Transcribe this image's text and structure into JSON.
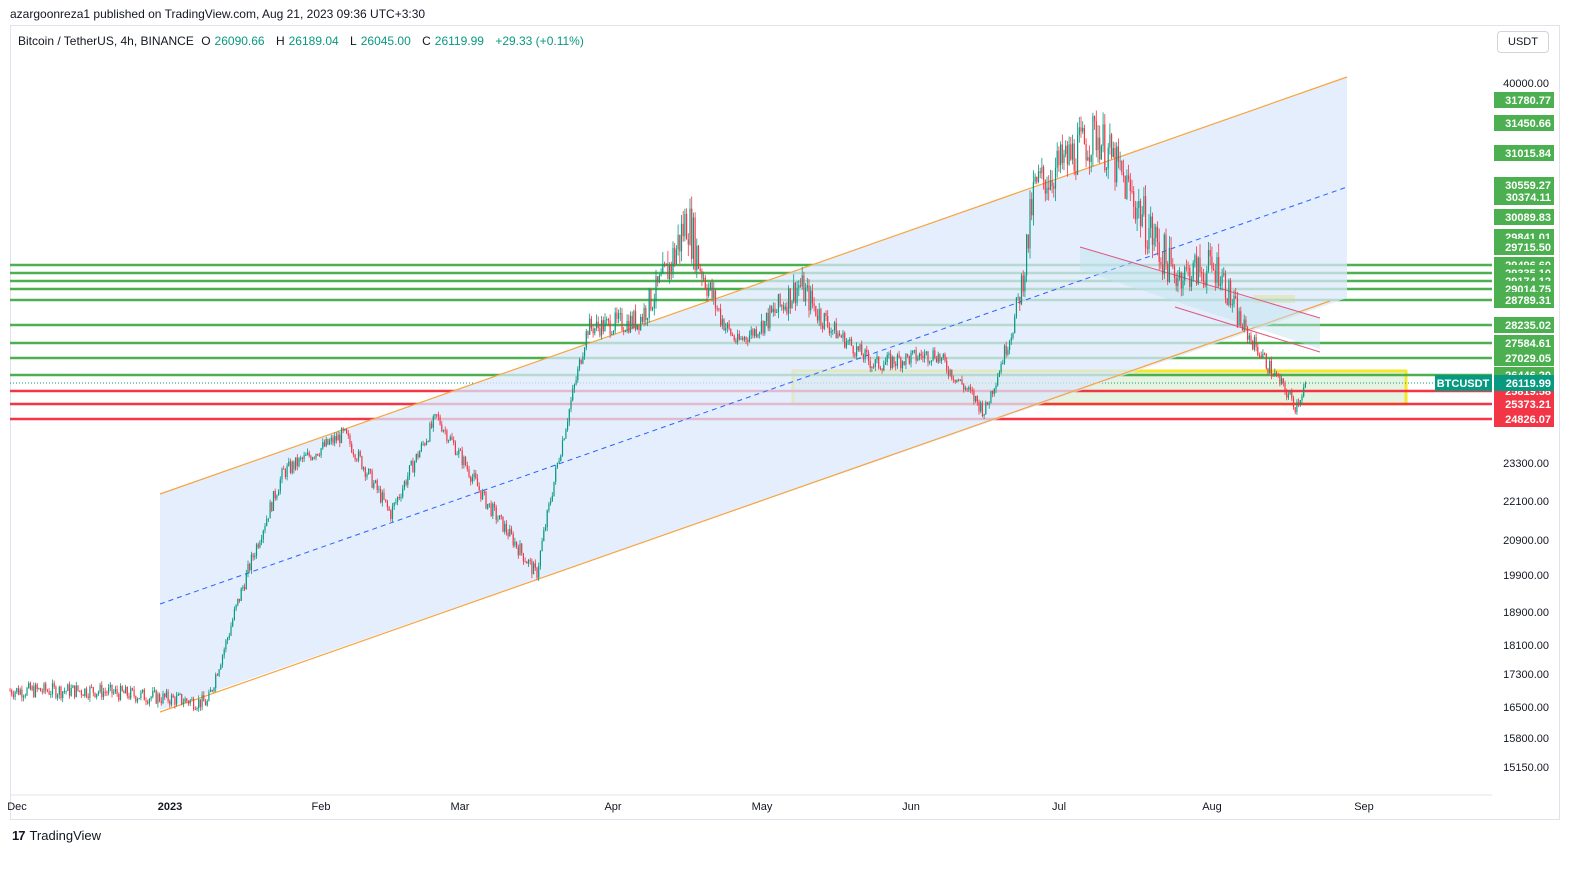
{
  "header": {
    "publisher_line": "azargoonreza1 published on TradingView.com, Aug 21, 2023 09:36 UTC+3:30"
  },
  "legend": {
    "symbol": "Bitcoin / TetherUS, 4h, BINANCE",
    "o_label": "O",
    "o_value": "26090.66",
    "h_label": "H",
    "h_value": "26189.04",
    "l_label": "L",
    "l_value": "26045.00",
    "c_label": "C",
    "c_value": "26119.99",
    "change": "+29.33 (+0.11%)"
  },
  "currency_button": "USDT",
  "brand": {
    "logo": "17",
    "name": "TradingView"
  },
  "colors": {
    "up": "#089981",
    "down": "#f23645",
    "hline_green": "#4caf50",
    "hline_red": "#f23645",
    "channel": "#f7a440",
    "channel_fill": "#dbe8fb",
    "midline": "#2962ff",
    "zone": "#f5e72a"
  },
  "chart_data": {
    "type": "candlestick",
    "symbol": "BTCUSDT",
    "interval": "4h",
    "last_price": 26119.99,
    "y_axis_ticks": [
      40000,
      23300,
      22100,
      20900,
      19900,
      18900,
      18100,
      17300,
      16500,
      15800,
      15150
    ],
    "y_axis_labels": [
      "40000.00",
      "23300.00",
      "22100.00",
      "20900.00",
      "19900.00",
      "18900.00",
      "18100.00",
      "17300.00",
      "16500.00",
      "15800.00",
      "15150.00"
    ],
    "x_axis_labels": [
      "Dec",
      "2023",
      "Feb",
      "Mar",
      "Apr",
      "May",
      "Jun",
      "Jul",
      "Aug",
      "Sep"
    ],
    "horizontal_levels": [
      {
        "price": 31780.77,
        "label": "31780.77",
        "color": "green"
      },
      {
        "price": 31450.66,
        "label": "31450.66",
        "color": "green"
      },
      {
        "price": 31015.84,
        "label": "31015.84",
        "color": "green"
      },
      {
        "price": 30559.27,
        "label": "30559.27",
        "color": "green"
      },
      {
        "price": 30374.11,
        "label": "30374.11",
        "color": "green"
      },
      {
        "price": 30089.83,
        "label": "30089.83",
        "color": "green"
      },
      {
        "price": 29841.01,
        "label": "29841.01",
        "color": "green"
      },
      {
        "price": 29715.5,
        "label": "29715.50",
        "color": "green"
      },
      {
        "price": 29496.6,
        "label": "29496.60",
        "color": "green"
      },
      {
        "price": 29335.1,
        "label": "29335.10",
        "color": "green"
      },
      {
        "price": 29174.12,
        "label": "29174.12",
        "color": "green"
      },
      {
        "price": 29014.75,
        "label": "29014.75",
        "color": "green"
      },
      {
        "price": 28789.31,
        "label": "28789.31",
        "color": "green"
      },
      {
        "price": 28235.02,
        "label": "28235.02",
        "color": "green"
      },
      {
        "price": 27584.61,
        "label": "27584.61",
        "color": "green"
      },
      {
        "price": 27029.05,
        "label": "27029.05",
        "color": "green"
      },
      {
        "price": 26446.2,
        "label": "26446.20",
        "color": "green"
      },
      {
        "price": 25819.58,
        "label": "25819.58",
        "color": "red"
      },
      {
        "price": 25373.21,
        "label": "25373.21",
        "color": "red"
      },
      {
        "price": 24826.07,
        "label": "24826.07",
        "color": "red"
      }
    ],
    "price_tag": {
      "symbol": "BTCUSDT",
      "value": "26119.99"
    },
    "price_path": [
      {
        "month": "Dec",
        "price": 16900
      },
      {
        "month": "Jan",
        "price": 16600
      },
      {
        "month": "Jan",
        "price": 23000
      },
      {
        "month": "Feb",
        "price": 24300
      },
      {
        "month": "Feb",
        "price": 21700
      },
      {
        "month": "Feb",
        "price": 24900
      },
      {
        "month": "Mar",
        "price": 22100
      },
      {
        "month": "Mar",
        "price": 19900
      },
      {
        "month": "Mar",
        "price": 28100
      },
      {
        "month": "Apr",
        "price": 28300
      },
      {
        "month": "Apr",
        "price": 30100
      },
      {
        "month": "Apr",
        "price": 27600
      },
      {
        "month": "May",
        "price": 29100
      },
      {
        "month": "May",
        "price": 26800
      },
      {
        "month": "Jun",
        "price": 27200
      },
      {
        "month": "Jun",
        "price": 25100
      },
      {
        "month": "Jun",
        "price": 30500
      },
      {
        "month": "Jul",
        "price": 31300
      },
      {
        "month": "Jul",
        "price": 29300
      },
      {
        "month": "Aug",
        "price": 29400
      },
      {
        "month": "Aug",
        "price": 25300
      },
      {
        "month": "Aug",
        "price": 26119.99
      }
    ]
  }
}
